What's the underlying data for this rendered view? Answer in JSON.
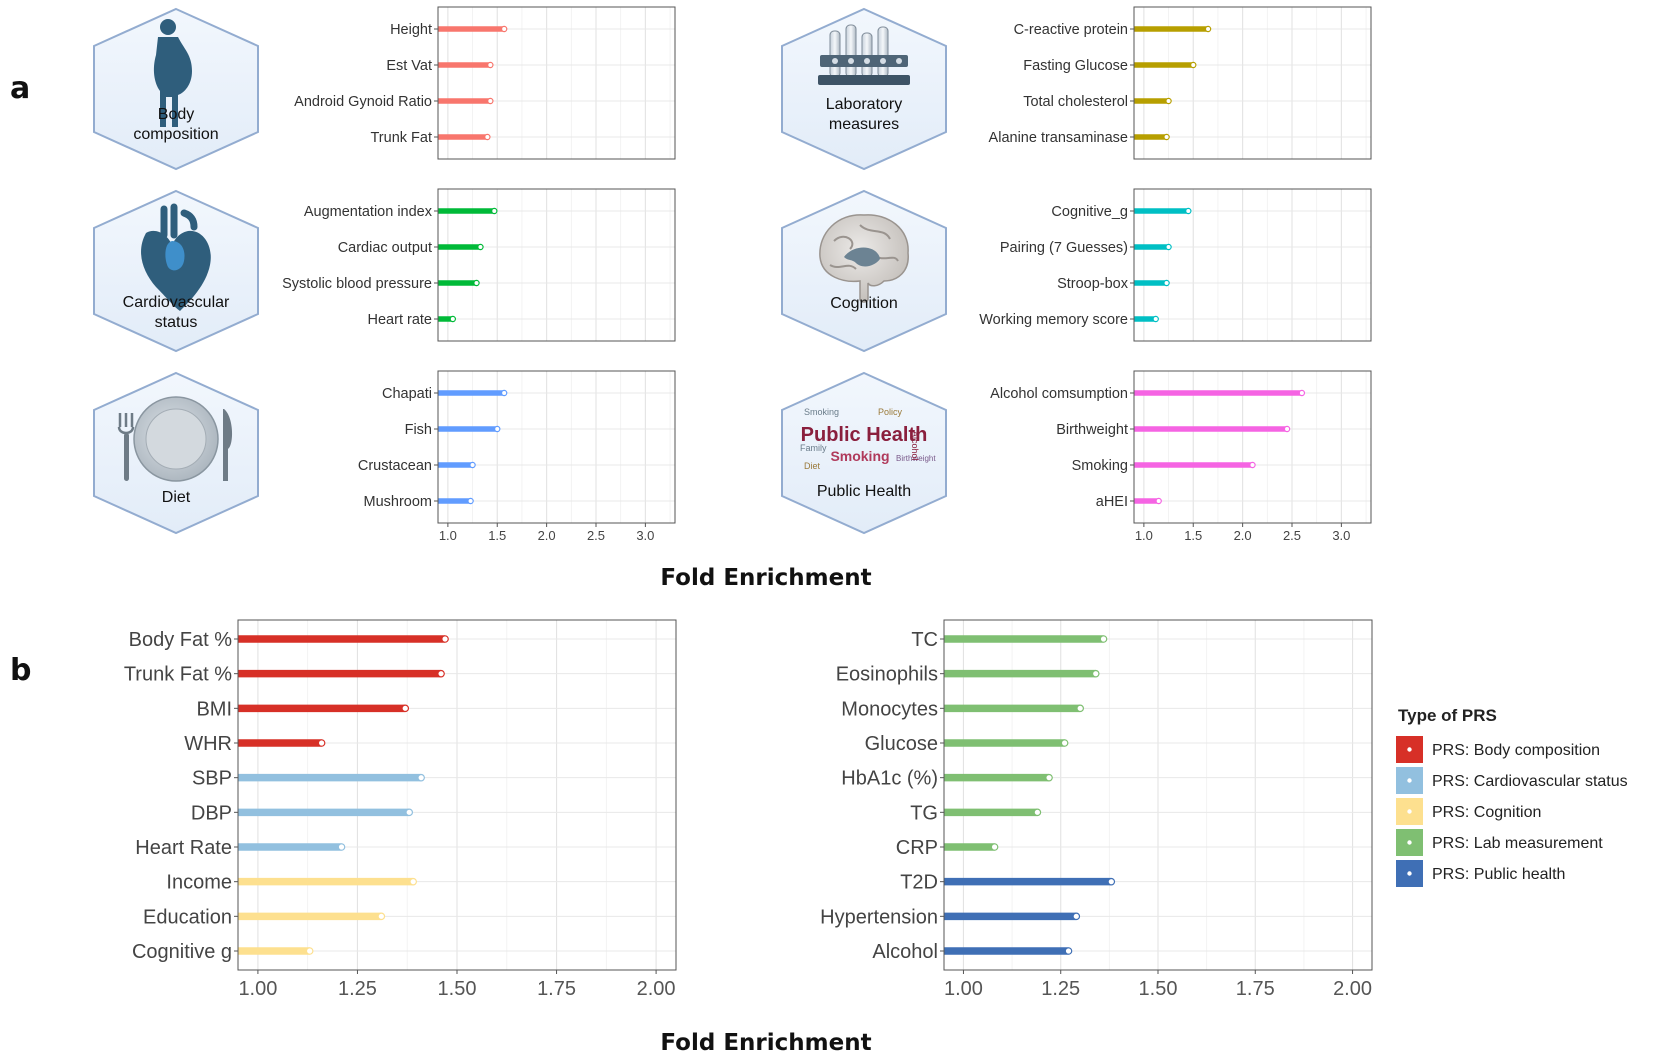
{
  "panel_a": {
    "letter": "a",
    "xlabel": "Fold Enrichment",
    "categories": [
      {
        "title_lines": [
          "Body",
          "composition"
        ],
        "icon": "body-silhouette-icon"
      },
      {
        "title_lines": [
          "Laboratory",
          "measures"
        ],
        "icon": "test-tubes-icon"
      },
      {
        "title_lines": [
          "Cardiovascular",
          "status"
        ],
        "icon": "heart-icon"
      },
      {
        "title_lines": [
          "Cognition"
        ],
        "icon": "brain-icon"
      },
      {
        "title_lines": [
          "Diet"
        ],
        "icon": "plate-cutlery-icon"
      },
      {
        "title_lines": [
          "Public Health"
        ],
        "icon": "word-cloud-icon",
        "word_cloud": {
          "main": "Public Health",
          "secondary": "Smoking",
          "small": [
            "Smoking",
            "Policy",
            "Birthweight",
            "Alcohol",
            "Family",
            "Diet"
          ]
        }
      }
    ]
  },
  "panel_b": {
    "letter": "b",
    "xlabel": "Fold Enrichment"
  },
  "legend": {
    "title": "Type of PRS",
    "items": [
      {
        "label": "PRS: Body composition",
        "color": "#d73027"
      },
      {
        "label": "PRS: Cardiovascular status",
        "color": "#92c0df"
      },
      {
        "label": "PRS: Cognition",
        "color": "#fde08f"
      },
      {
        "label": "PRS: Lab measurement",
        "color": "#7fbf72"
      },
      {
        "label": "PRS: Public health",
        "color": "#3f6fb5"
      }
    ]
  },
  "chart_data": [
    {
      "type": "bar",
      "panel": "a",
      "categories": [
        "Height",
        "Est Vat",
        "Android Gynoid Ratio",
        "Trunk Fat"
      ],
      "values": [
        1.57,
        1.43,
        1.43,
        1.4
      ],
      "color": "#f8766d",
      "xlim": [
        0.9,
        3.3
      ],
      "xticks": [],
      "grid": true
    },
    {
      "type": "bar",
      "panel": "a",
      "categories": [
        "C-reactive protein",
        "Fasting Glucose",
        "Total cholesterol",
        "Alanine transaminase"
      ],
      "values": [
        1.65,
        1.5,
        1.25,
        1.23
      ],
      "color": "#b79f00",
      "xlim": [
        0.9,
        3.3
      ],
      "xticks": [],
      "grid": true
    },
    {
      "type": "bar",
      "panel": "a",
      "categories": [
        "Augmentation index",
        "Cardiac output",
        "Systolic blood pressure",
        "Heart rate"
      ],
      "values": [
        1.47,
        1.33,
        1.29,
        1.05
      ],
      "color": "#00ba38",
      "xlim": [
        0.9,
        3.3
      ],
      "xticks": [],
      "grid": true
    },
    {
      "type": "bar",
      "panel": "a",
      "categories": [
        "Cognitive_g",
        "Pairing (7 Guesses)",
        "Stroop-box",
        "Working memory score"
      ],
      "values": [
        1.45,
        1.25,
        1.23,
        1.12
      ],
      "color": "#00bfc4",
      "xlim": [
        0.9,
        3.3
      ],
      "xticks": [],
      "grid": true
    },
    {
      "type": "bar",
      "panel": "a",
      "categories": [
        "Chapati",
        "Fish",
        "Crustacean",
        "Mushroom"
      ],
      "values": [
        1.57,
        1.5,
        1.25,
        1.23
      ],
      "color": "#619cff",
      "xlim": [
        0.9,
        3.3
      ],
      "xticks": [
        "1.0",
        "1.5",
        "2.0",
        "2.5",
        "3.0"
      ],
      "grid": true
    },
    {
      "type": "bar",
      "panel": "a",
      "categories": [
        "Alcohol comsumption",
        "Birthweight",
        "Smoking",
        "aHEI"
      ],
      "values": [
        2.6,
        2.45,
        2.1,
        1.15
      ],
      "color": "#f564e3",
      "xlim": [
        0.9,
        3.3
      ],
      "xticks": [
        "1.0",
        "1.5",
        "2.0",
        "2.5",
        "3.0"
      ],
      "grid": true
    },
    {
      "type": "bar",
      "panel": "b",
      "categories": [
        "Body Fat %",
        "Trunk Fat %",
        "BMI",
        "WHR",
        "SBP",
        "DBP",
        "Heart Rate",
        "Income",
        "Education",
        "Cognitive g"
      ],
      "values": [
        1.47,
        1.46,
        1.37,
        1.16,
        1.41,
        1.38,
        1.21,
        1.39,
        1.31,
        1.13
      ],
      "series_index": [
        0,
        0,
        0,
        0,
        1,
        1,
        1,
        2,
        2,
        2
      ],
      "xlim": [
        0.95,
        2.05
      ],
      "xticks": [
        "1.00",
        "1.25",
        "1.50",
        "1.75",
        "2.00"
      ],
      "grid": true
    },
    {
      "type": "bar",
      "panel": "b",
      "categories": [
        "TC",
        "Eosinophils",
        "Monocytes",
        "Glucose",
        "HbA1c (%)",
        "TG",
        "CRP",
        "T2D",
        "Hypertension",
        "Alcohol"
      ],
      "values": [
        1.36,
        1.34,
        1.3,
        1.26,
        1.22,
        1.19,
        1.08,
        1.38,
        1.29,
        1.27
      ],
      "series_index": [
        3,
        3,
        3,
        3,
        3,
        3,
        3,
        4,
        4,
        4
      ],
      "xlim": [
        0.95,
        2.05
      ],
      "xticks": [
        "1.00",
        "1.25",
        "1.50",
        "1.75",
        "2.00"
      ],
      "grid": true
    }
  ]
}
